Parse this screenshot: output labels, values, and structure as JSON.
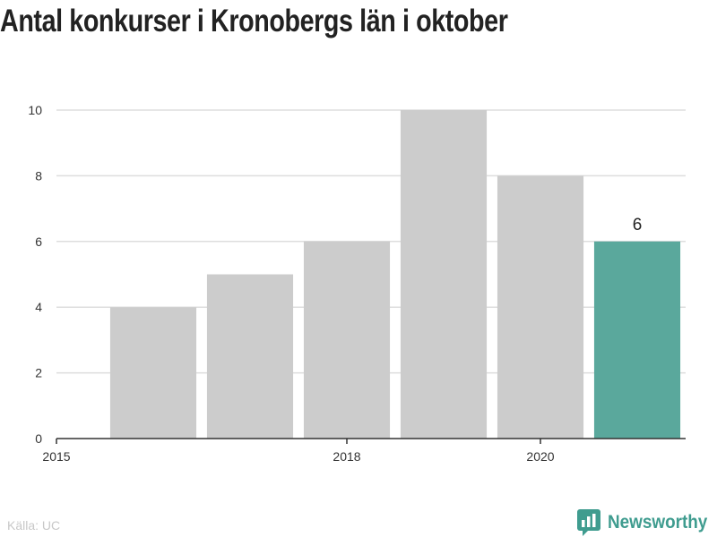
{
  "title": "Antal konkurser i Kronobergs län i oktober",
  "source": "Källa: UC",
  "brand": "Newsworthy",
  "colors": {
    "bar": "#cccccc",
    "highlight": "#5aa89c",
    "grid": "#dddddd",
    "axis": "#333333",
    "brand": "#3f9c8f"
  },
  "chart_data": {
    "type": "bar",
    "categories": [
      "2016",
      "2017",
      "2018",
      "2019",
      "2020",
      "2021"
    ],
    "values": [
      4,
      5,
      6,
      10,
      8,
      6
    ],
    "highlight_index": 5,
    "data_labels": [
      {
        "index": 5,
        "text": "6"
      }
    ],
    "x_tick_labels": [
      {
        "value": 2015,
        "text": "2015"
      },
      {
        "value": 2018,
        "text": "2018"
      },
      {
        "value": 2020,
        "text": "2020"
      }
    ],
    "y_ticks": [
      0,
      2,
      4,
      6,
      8,
      10
    ],
    "ylim": [
      0,
      10
    ],
    "xlim": [
      2015,
      2021.5
    ],
    "grid": true,
    "title": "Antal konkurser i Kronobergs län i oktober",
    "xlabel": "",
    "ylabel": ""
  }
}
